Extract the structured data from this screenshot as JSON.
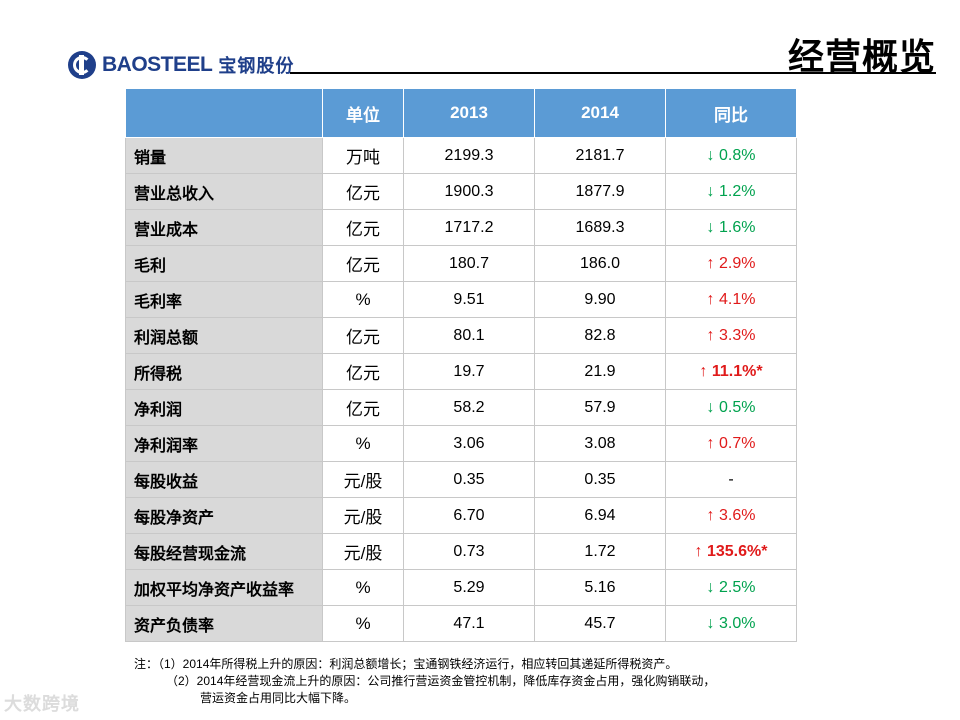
{
  "header": {
    "logo_en": "BAOSTEEL",
    "logo_cn": "宝钢股份",
    "title": "经营概览"
  },
  "table": {
    "columns": [
      "",
      "单位",
      "2013",
      "2014",
      "同比"
    ],
    "rows": [
      {
        "name": "销量",
        "unit": "万吨",
        "y2013": "2199.3",
        "y2014": "2181.7",
        "change": "↓ 0.8%",
        "dir": "down",
        "bold": false
      },
      {
        "name": "营业总收入",
        "unit": "亿元",
        "y2013": "1900.3",
        "y2014": "1877.9",
        "change": "↓ 1.2%",
        "dir": "down",
        "bold": false
      },
      {
        "name": "营业成本",
        "unit": "亿元",
        "y2013": "1717.2",
        "y2014": "1689.3",
        "change": "↓ 1.6%",
        "dir": "down",
        "bold": false
      },
      {
        "name": "毛利",
        "unit": "亿元",
        "y2013": "180.7",
        "y2014": "186.0",
        "change": "↑ 2.9%",
        "dir": "up",
        "bold": false
      },
      {
        "name": "毛利率",
        "unit": "%",
        "y2013": "9.51",
        "y2014": "9.90",
        "change": "↑ 4.1%",
        "dir": "up",
        "bold": false
      },
      {
        "name": "利润总额",
        "unit": "亿元",
        "y2013": "80.1",
        "y2014": "82.8",
        "change": "↑ 3.3%",
        "dir": "up",
        "bold": false
      },
      {
        "name": "所得税",
        "unit": "亿元",
        "y2013": "19.7",
        "y2014": "21.9",
        "change": "↑ 11.1%*",
        "dir": "up",
        "bold": true
      },
      {
        "name": "净利润",
        "unit": "亿元",
        "y2013": "58.2",
        "y2014": "57.9",
        "change": "↓ 0.5%",
        "dir": "down",
        "bold": false
      },
      {
        "name": "净利润率",
        "unit": "%",
        "y2013": "3.06",
        "y2014": "3.08",
        "change": "↑ 0.7%",
        "dir": "up",
        "bold": false
      },
      {
        "name": "每股收益",
        "unit": "元/股",
        "y2013": "0.35",
        "y2014": "0.35",
        "change": "-",
        "dir": "none",
        "bold": false
      },
      {
        "name": "每股净资产",
        "unit": "元/股",
        "y2013": "6.70",
        "y2014": "6.94",
        "change": "↑ 3.6%",
        "dir": "up",
        "bold": false
      },
      {
        "name": "每股经营现金流",
        "unit": "元/股",
        "y2013": "0.73",
        "y2014": "1.72",
        "change": "↑ 135.6%*",
        "dir": "up",
        "bold": true
      },
      {
        "name": "加权平均净资产收益率",
        "unit": "%",
        "y2013": "5.29",
        "y2014": "5.16",
        "change": "↓ 2.5%",
        "dir": "down",
        "bold": false
      },
      {
        "name": "资产负债率",
        "unit": "%",
        "y2013": "47.1",
        "y2014": "45.7",
        "change": "↓ 3.0%",
        "dir": "down",
        "bold": false
      }
    ]
  },
  "notes": {
    "line1": "注：（1）2014年所得税上升的原因：利润总额增长；宝通钢铁经济运行，相应转回其递延所得税资产。",
    "line2": "（2）2014年经营现金流上升的原因：公司推行营运资金管控机制，降低库存资金占用，强化购销联动，",
    "line3": "营运资金占用同比大幅下降。"
  },
  "watermark": "大数跨境",
  "colors": {
    "header_bg": "#5b9bd5",
    "name_col_bg": "#d9d9d9",
    "up": "#e01a1a",
    "down": "#00a24e",
    "brand": "#1f3f8a"
  }
}
